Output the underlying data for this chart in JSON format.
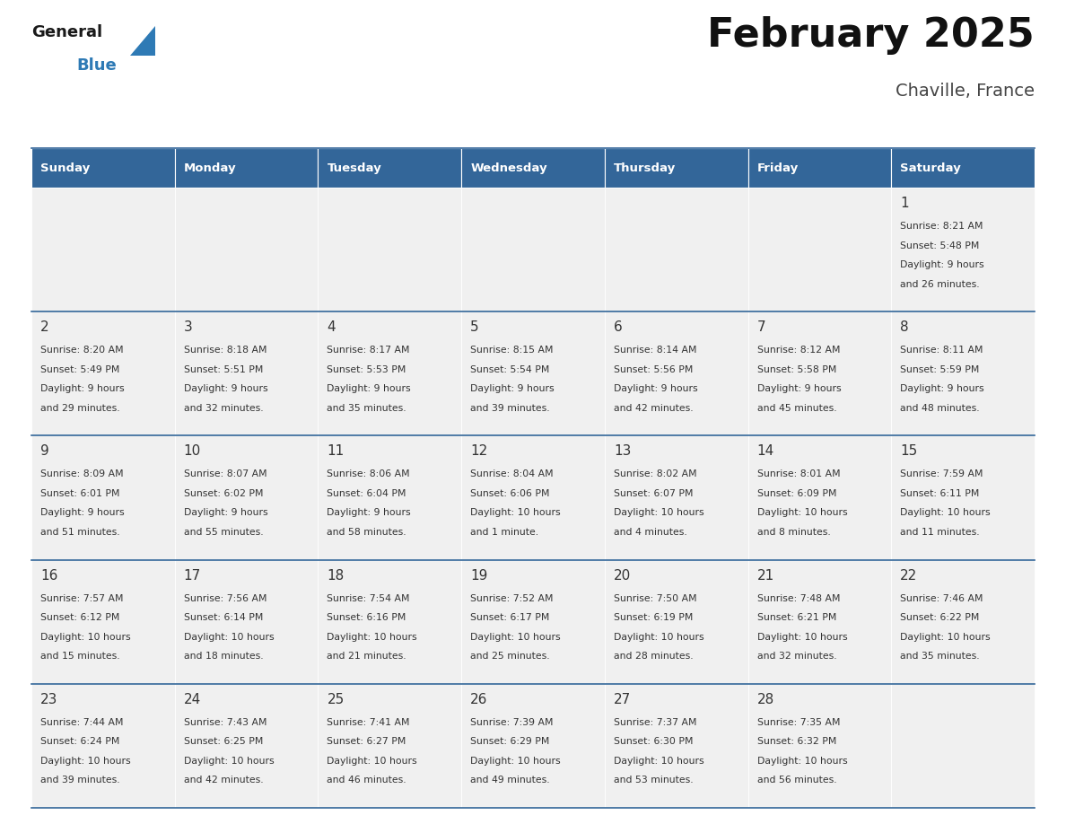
{
  "title": "February 2025",
  "subtitle": "Chaville, France",
  "header_bg": "#336699",
  "header_text_color": "#FFFFFF",
  "cell_bg": "#F0F0F0",
  "divider_color": "#336699",
  "text_color": "#333333",
  "days_of_week": [
    "Sunday",
    "Monday",
    "Tuesday",
    "Wednesday",
    "Thursday",
    "Friday",
    "Saturday"
  ],
  "calendar_data": [
    [
      {
        "day": "",
        "sunrise": "",
        "sunset": "",
        "daylight": ""
      },
      {
        "day": "",
        "sunrise": "",
        "sunset": "",
        "daylight": ""
      },
      {
        "day": "",
        "sunrise": "",
        "sunset": "",
        "daylight": ""
      },
      {
        "day": "",
        "sunrise": "",
        "sunset": "",
        "daylight": ""
      },
      {
        "day": "",
        "sunrise": "",
        "sunset": "",
        "daylight": ""
      },
      {
        "day": "",
        "sunrise": "",
        "sunset": "",
        "daylight": ""
      },
      {
        "day": "1",
        "sunrise": "8:21 AM",
        "sunset": "5:48 PM",
        "daylight": "9 hours\nand 26 minutes."
      }
    ],
    [
      {
        "day": "2",
        "sunrise": "8:20 AM",
        "sunset": "5:49 PM",
        "daylight": "9 hours\nand 29 minutes."
      },
      {
        "day": "3",
        "sunrise": "8:18 AM",
        "sunset": "5:51 PM",
        "daylight": "9 hours\nand 32 minutes."
      },
      {
        "day": "4",
        "sunrise": "8:17 AM",
        "sunset": "5:53 PM",
        "daylight": "9 hours\nand 35 minutes."
      },
      {
        "day": "5",
        "sunrise": "8:15 AM",
        "sunset": "5:54 PM",
        "daylight": "9 hours\nand 39 minutes."
      },
      {
        "day": "6",
        "sunrise": "8:14 AM",
        "sunset": "5:56 PM",
        "daylight": "9 hours\nand 42 minutes."
      },
      {
        "day": "7",
        "sunrise": "8:12 AM",
        "sunset": "5:58 PM",
        "daylight": "9 hours\nand 45 minutes."
      },
      {
        "day": "8",
        "sunrise": "8:11 AM",
        "sunset": "5:59 PM",
        "daylight": "9 hours\nand 48 minutes."
      }
    ],
    [
      {
        "day": "9",
        "sunrise": "8:09 AM",
        "sunset": "6:01 PM",
        "daylight": "9 hours\nand 51 minutes."
      },
      {
        "day": "10",
        "sunrise": "8:07 AM",
        "sunset": "6:02 PM",
        "daylight": "9 hours\nand 55 minutes."
      },
      {
        "day": "11",
        "sunrise": "8:06 AM",
        "sunset": "6:04 PM",
        "daylight": "9 hours\nand 58 minutes."
      },
      {
        "day": "12",
        "sunrise": "8:04 AM",
        "sunset": "6:06 PM",
        "daylight": "10 hours\nand 1 minute."
      },
      {
        "day": "13",
        "sunrise": "8:02 AM",
        "sunset": "6:07 PM",
        "daylight": "10 hours\nand 4 minutes."
      },
      {
        "day": "14",
        "sunrise": "8:01 AM",
        "sunset": "6:09 PM",
        "daylight": "10 hours\nand 8 minutes."
      },
      {
        "day": "15",
        "sunrise": "7:59 AM",
        "sunset": "6:11 PM",
        "daylight": "10 hours\nand 11 minutes."
      }
    ],
    [
      {
        "day": "16",
        "sunrise": "7:57 AM",
        "sunset": "6:12 PM",
        "daylight": "10 hours\nand 15 minutes."
      },
      {
        "day": "17",
        "sunrise": "7:56 AM",
        "sunset": "6:14 PM",
        "daylight": "10 hours\nand 18 minutes."
      },
      {
        "day": "18",
        "sunrise": "7:54 AM",
        "sunset": "6:16 PM",
        "daylight": "10 hours\nand 21 minutes."
      },
      {
        "day": "19",
        "sunrise": "7:52 AM",
        "sunset": "6:17 PM",
        "daylight": "10 hours\nand 25 minutes."
      },
      {
        "day": "20",
        "sunrise": "7:50 AM",
        "sunset": "6:19 PM",
        "daylight": "10 hours\nand 28 minutes."
      },
      {
        "day": "21",
        "sunrise": "7:48 AM",
        "sunset": "6:21 PM",
        "daylight": "10 hours\nand 32 minutes."
      },
      {
        "day": "22",
        "sunrise": "7:46 AM",
        "sunset": "6:22 PM",
        "daylight": "10 hours\nand 35 minutes."
      }
    ],
    [
      {
        "day": "23",
        "sunrise": "7:44 AM",
        "sunset": "6:24 PM",
        "daylight": "10 hours\nand 39 minutes."
      },
      {
        "day": "24",
        "sunrise": "7:43 AM",
        "sunset": "6:25 PM",
        "daylight": "10 hours\nand 42 minutes."
      },
      {
        "day": "25",
        "sunrise": "7:41 AM",
        "sunset": "6:27 PM",
        "daylight": "10 hours\nand 46 minutes."
      },
      {
        "day": "26",
        "sunrise": "7:39 AM",
        "sunset": "6:29 PM",
        "daylight": "10 hours\nand 49 minutes."
      },
      {
        "day": "27",
        "sunrise": "7:37 AM",
        "sunset": "6:30 PM",
        "daylight": "10 hours\nand 53 minutes."
      },
      {
        "day": "28",
        "sunrise": "7:35 AM",
        "sunset": "6:32 PM",
        "daylight": "10 hours\nand 56 minutes."
      },
      {
        "day": "",
        "sunrise": "",
        "sunset": "",
        "daylight": ""
      }
    ]
  ],
  "logo_general_color": "#1a1a1a",
  "logo_blue_color": "#2E7AB5",
  "logo_triangle_color": "#2E7AB5",
  "title_color": "#111111",
  "subtitle_color": "#444444"
}
